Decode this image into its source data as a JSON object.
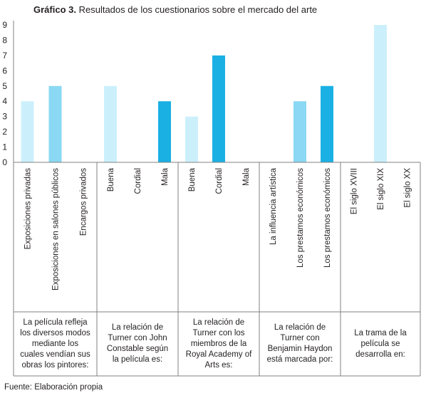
{
  "title": {
    "prefix": "Gráfico 3.",
    "text": "Resultados de los cuestionarios sobre el mercado del arte"
  },
  "source": "Fuente: Elaboración propia",
  "colors": {
    "light": "#ccf0fb",
    "medium": "#8ad8f3",
    "dark": "#1ab0e4",
    "axis": "#808080"
  },
  "chart_data": {
    "type": "bar",
    "ylim": [
      0,
      9
    ],
    "yticks": [
      0,
      1,
      2,
      3,
      4,
      5,
      6,
      7,
      8,
      9
    ],
    "grid": false,
    "groups": [
      {
        "label": "La película refleja los diversos modos mediante los cuales vendían sus obras los pintores:",
        "categories": [
          "Exposiciones privadas",
          "Exposiciones en salones públicos",
          "Encargos privados"
        ],
        "values": [
          4,
          5,
          0
        ],
        "shades": [
          "light",
          "medium",
          "dark"
        ]
      },
      {
        "label": "La relación de Turner con John Constable según la película es:",
        "categories": [
          "Buena",
          "Cordial",
          "Mala"
        ],
        "values": [
          5,
          0,
          4
        ],
        "shades": [
          "light",
          "medium",
          "dark"
        ]
      },
      {
        "label": "La relación de Turner con los miembros de la Royal Academy of Arts es:",
        "categories": [
          "Buena",
          "Cordial",
          "Mala"
        ],
        "values": [
          3,
          7,
          0
        ],
        "shades": [
          "light",
          "dark",
          "dark"
        ]
      },
      {
        "label": "La relación de Turner con Benjamin Haydon está marcada por:",
        "categories": [
          "La influencia artística",
          "Los prestamos económicos",
          "Los prestamos económicos"
        ],
        "values": [
          0,
          4,
          5
        ],
        "shades": [
          "light",
          "medium",
          "dark"
        ]
      },
      {
        "label": "La trama de la película se desarrolla en:",
        "categories": [
          "El siglo XVIII",
          "El siglo XIX",
          "El siglo XX"
        ],
        "values": [
          0,
          9,
          0
        ],
        "shades": [
          "light",
          "light",
          "dark"
        ]
      }
    ]
  }
}
